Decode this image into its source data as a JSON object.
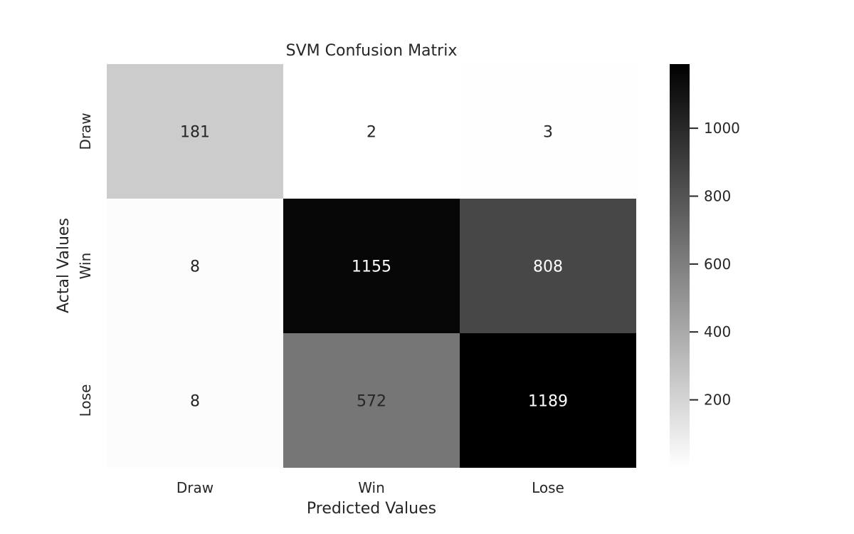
{
  "chart_data": {
    "type": "heatmap",
    "title": "SVM Confusion Matrix",
    "xlabel": "Predicted Values",
    "ylabel": "Actal Values",
    "x_categories": [
      "Draw",
      "Win",
      "Lose"
    ],
    "y_categories": [
      "Draw",
      "Win",
      "Lose"
    ],
    "values": [
      [
        181,
        2,
        3
      ],
      [
        8,
        1155,
        808
      ],
      [
        8,
        572,
        1189
      ]
    ],
    "colormap": "Greys",
    "color_low": "#ffffff",
    "color_high": "#000000",
    "vmin": 2,
    "vmax": 1189,
    "colorbar": {
      "ticks": [
        200,
        400,
        600,
        800,
        1000
      ],
      "tick_labels": [
        "200",
        "400",
        "600",
        "800",
        "1000"
      ]
    },
    "grid": false
  }
}
